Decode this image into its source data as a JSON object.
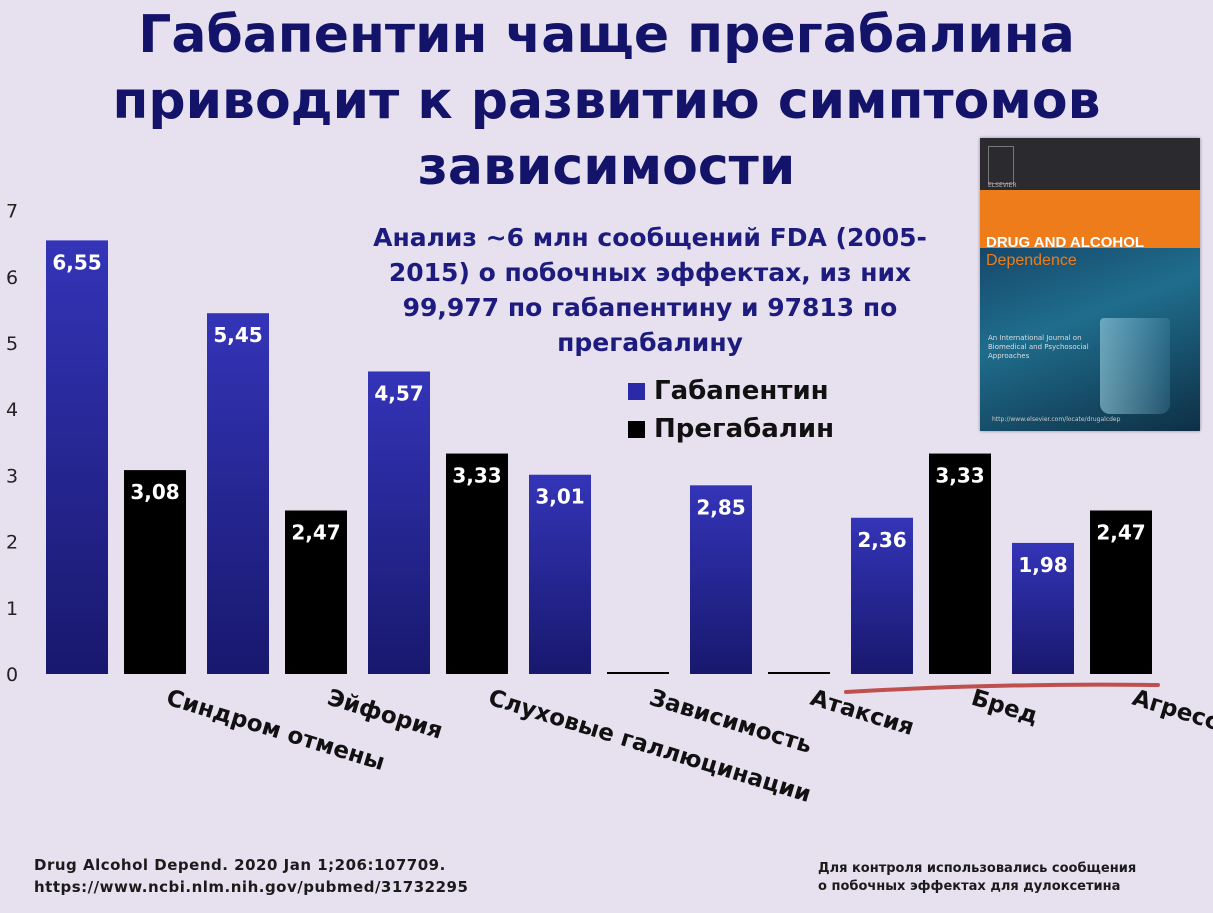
{
  "title_lines": [
    "Габапентин чаще прегабалина",
    "приводит к развитию симптомов",
    "зависимости"
  ],
  "subtitle_lines": [
    "Анализ ~6 млн сообщений FDA (2005-",
    "2015) о побочных эффектах, из них",
    "99,977 по габапентину и 97813 по",
    "прегабалину"
  ],
  "chart_data": {
    "type": "bar",
    "categories": [
      "Синдром отмены",
      "Эйфория",
      "Слуховые галлюцинации",
      "Зависимость",
      "Атаксия",
      "Бред",
      "Агрессия"
    ],
    "series": [
      {
        "name": "Габапентин",
        "color": "#2a2aa8",
        "values": [
          6.55,
          5.45,
          4.57,
          3.01,
          2.85,
          2.36,
          1.98
        ],
        "labels": [
          "6,55",
          "5,45",
          "4,57",
          "3,01",
          "2,85",
          "2,36",
          "1,98"
        ]
      },
      {
        "name": "Прегабалин",
        "color": "#000000",
        "values": [
          3.08,
          2.47,
          3.33,
          0,
          0,
          3.33,
          2.47
        ],
        "labels": [
          "3,08",
          "2,47",
          "3,33",
          "",
          "",
          "3,33",
          "2,47"
        ]
      }
    ],
    "yticks": [
      "0",
      "1",
      "2",
      "3",
      "4",
      "5",
      "6",
      "7"
    ],
    "ylim": [
      0,
      7
    ],
    "grid": false,
    "legend_position": "center-right",
    "highlight_underline_color": "#c0504d"
  },
  "cover": {
    "journal_line1": "DRUG AND ALCOHOL",
    "journal_line2": "Dependence",
    "publisher": "ELSEVIER",
    "subtitle": "An International Journal on Biomedical and Psychosocial Approaches",
    "url": "http://www.elsevier.com/locate/drugalcdep"
  },
  "footer": {
    "citation_line1": "Drug Alcohol Depend. 2020 Jan 1;206:107709.",
    "citation_line2": "https://www.ncbi.nlm.nih.gov/pubmed/31732295",
    "note_line1": "Для контроля использовались сообщения",
    "note_line2": "о побочных эффектах для дулоксетина"
  }
}
